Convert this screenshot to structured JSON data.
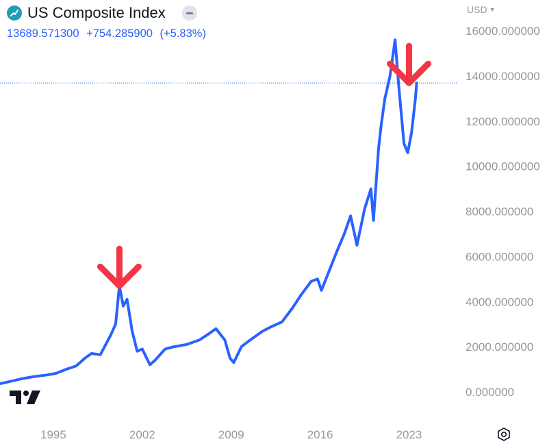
{
  "header": {
    "title": "US Composite Index",
    "last": "13689.571300",
    "change": "+754.285900",
    "change_pct": "(+5.83%)",
    "color": "#2962ff"
  },
  "currency": {
    "label": "USD"
  },
  "icons": {
    "app": "trend-icon",
    "collapse": "minus-icon",
    "logo": "tradingview-logo",
    "settings": "hexagon-settings-icon",
    "chevron": "chevron-down-icon"
  },
  "colors": {
    "line": "#2962ff",
    "arrow": "#f23645",
    "axis_text": "#9598a1"
  },
  "chart_data": {
    "type": "line",
    "title": "US Composite Index",
    "xlabel": "",
    "ylabel": "",
    "x_ticks": [
      "1995",
      "2002",
      "2009",
      "2016",
      "2023"
    ],
    "y_ticks": [
      "0.000000",
      "2000.000000",
      "4000.000000",
      "6000.000000",
      "8000.000000",
      "10000.000000",
      "12000.000000",
      "14000.000000",
      "16000.000000"
    ],
    "ylim": [
      0,
      16000
    ],
    "xlim": [
      1990.8,
      2026.8
    ],
    "grid": false,
    "last_value": 13689.5713,
    "annotations": [
      {
        "type": "down-arrow",
        "x": 2000.2,
        "y": 4700
      },
      {
        "type": "down-arrow",
        "x": 2023.0,
        "y": 13690
      }
    ],
    "series": [
      {
        "values": [
          [
            1990.8,
            360
          ],
          [
            1991.5,
            450
          ],
          [
            1992.5,
            580
          ],
          [
            1993.5,
            680
          ],
          [
            1994.5,
            750
          ],
          [
            1995.2,
            820
          ],
          [
            1996.0,
            1000
          ],
          [
            1996.8,
            1150
          ],
          [
            1997.5,
            1500
          ],
          [
            1998.0,
            1700
          ],
          [
            1998.7,
            1650
          ],
          [
            1999.5,
            2500
          ],
          [
            1999.9,
            3000
          ],
          [
            2000.2,
            4700
          ],
          [
            2000.5,
            3800
          ],
          [
            2000.8,
            4100
          ],
          [
            2001.2,
            2700
          ],
          [
            2001.6,
            1800
          ],
          [
            2002.0,
            1900
          ],
          [
            2002.6,
            1200
          ],
          [
            2003.0,
            1400
          ],
          [
            2003.8,
            1900
          ],
          [
            2004.5,
            2000
          ],
          [
            2005.5,
            2100
          ],
          [
            2006.5,
            2300
          ],
          [
            2007.3,
            2600
          ],
          [
            2007.8,
            2800
          ],
          [
            2008.5,
            2300
          ],
          [
            2008.9,
            1500
          ],
          [
            2009.2,
            1300
          ],
          [
            2009.8,
            2000
          ],
          [
            2010.5,
            2300
          ],
          [
            2011.5,
            2700
          ],
          [
            2012.2,
            2900
          ],
          [
            2013.0,
            3100
          ],
          [
            2013.8,
            3700
          ],
          [
            2014.5,
            4300
          ],
          [
            2015.3,
            4900
          ],
          [
            2015.8,
            5000
          ],
          [
            2016.1,
            4500
          ],
          [
            2016.6,
            5200
          ],
          [
            2017.3,
            6200
          ],
          [
            2017.9,
            7000
          ],
          [
            2018.4,
            7800
          ],
          [
            2018.9,
            6500
          ],
          [
            2019.5,
            8100
          ],
          [
            2020.0,
            9000
          ],
          [
            2020.2,
            7600
          ],
          [
            2020.6,
            10800
          ],
          [
            2020.8,
            11800
          ],
          [
            2021.1,
            13000
          ],
          [
            2021.5,
            14000
          ],
          [
            2021.9,
            15600
          ],
          [
            2022.2,
            13500
          ],
          [
            2022.6,
            11000
          ],
          [
            2022.9,
            10600
          ],
          [
            2023.2,
            11500
          ],
          [
            2023.5,
            13000
          ],
          [
            2023.6,
            13690
          ]
        ]
      }
    ]
  }
}
